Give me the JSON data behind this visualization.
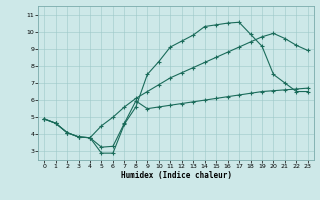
{
  "xlabel": "Humidex (Indice chaleur)",
  "xlim": [
    -0.5,
    23.5
  ],
  "ylim": [
    2.5,
    11.5
  ],
  "xticks": [
    0,
    1,
    2,
    3,
    4,
    5,
    6,
    7,
    8,
    9,
    10,
    11,
    12,
    13,
    14,
    15,
    16,
    17,
    18,
    19,
    20,
    21,
    22,
    23
  ],
  "yticks": [
    3,
    4,
    5,
    6,
    7,
    8,
    9,
    10,
    11
  ],
  "bg_color": "#cde8e8",
  "line_color": "#1a6b5a",
  "curve1_x": [
    0,
    1,
    2,
    3,
    4,
    5,
    6,
    7,
    8,
    9,
    10,
    11,
    12,
    13,
    14,
    15,
    16,
    17,
    18,
    19,
    20,
    21,
    22,
    23
  ],
  "curve1_y": [
    4.9,
    4.65,
    4.1,
    3.85,
    3.8,
    2.9,
    2.9,
    4.6,
    5.6,
    7.5,
    8.25,
    9.1,
    9.45,
    9.8,
    10.3,
    10.4,
    10.5,
    10.55,
    9.85,
    9.15,
    7.5,
    7.0,
    6.5,
    6.5
  ],
  "curve2_x": [
    0,
    1,
    2,
    3,
    4,
    5,
    6,
    7,
    8,
    9,
    10,
    11,
    12,
    13,
    14,
    15,
    16,
    17,
    18,
    19,
    20,
    21,
    22,
    23
  ],
  "curve2_y": [
    4.9,
    4.65,
    4.1,
    3.85,
    3.8,
    4.5,
    5.0,
    5.6,
    6.1,
    6.5,
    6.9,
    7.3,
    7.6,
    7.9,
    8.2,
    8.5,
    8.8,
    9.1,
    9.4,
    9.7,
    9.9,
    9.6,
    9.2,
    8.9
  ],
  "curve3_x": [
    0,
    1,
    2,
    3,
    4,
    5,
    6,
    7,
    8,
    9,
    10,
    11,
    12,
    13,
    14,
    15,
    16,
    17,
    18,
    19,
    20,
    21,
    22,
    23
  ],
  "curve3_y": [
    4.9,
    4.65,
    4.1,
    3.85,
    3.8,
    3.25,
    3.3,
    4.65,
    5.95,
    5.5,
    5.6,
    5.7,
    5.8,
    5.9,
    6.0,
    6.1,
    6.2,
    6.3,
    6.4,
    6.5,
    6.55,
    6.6,
    6.65,
    6.7
  ]
}
